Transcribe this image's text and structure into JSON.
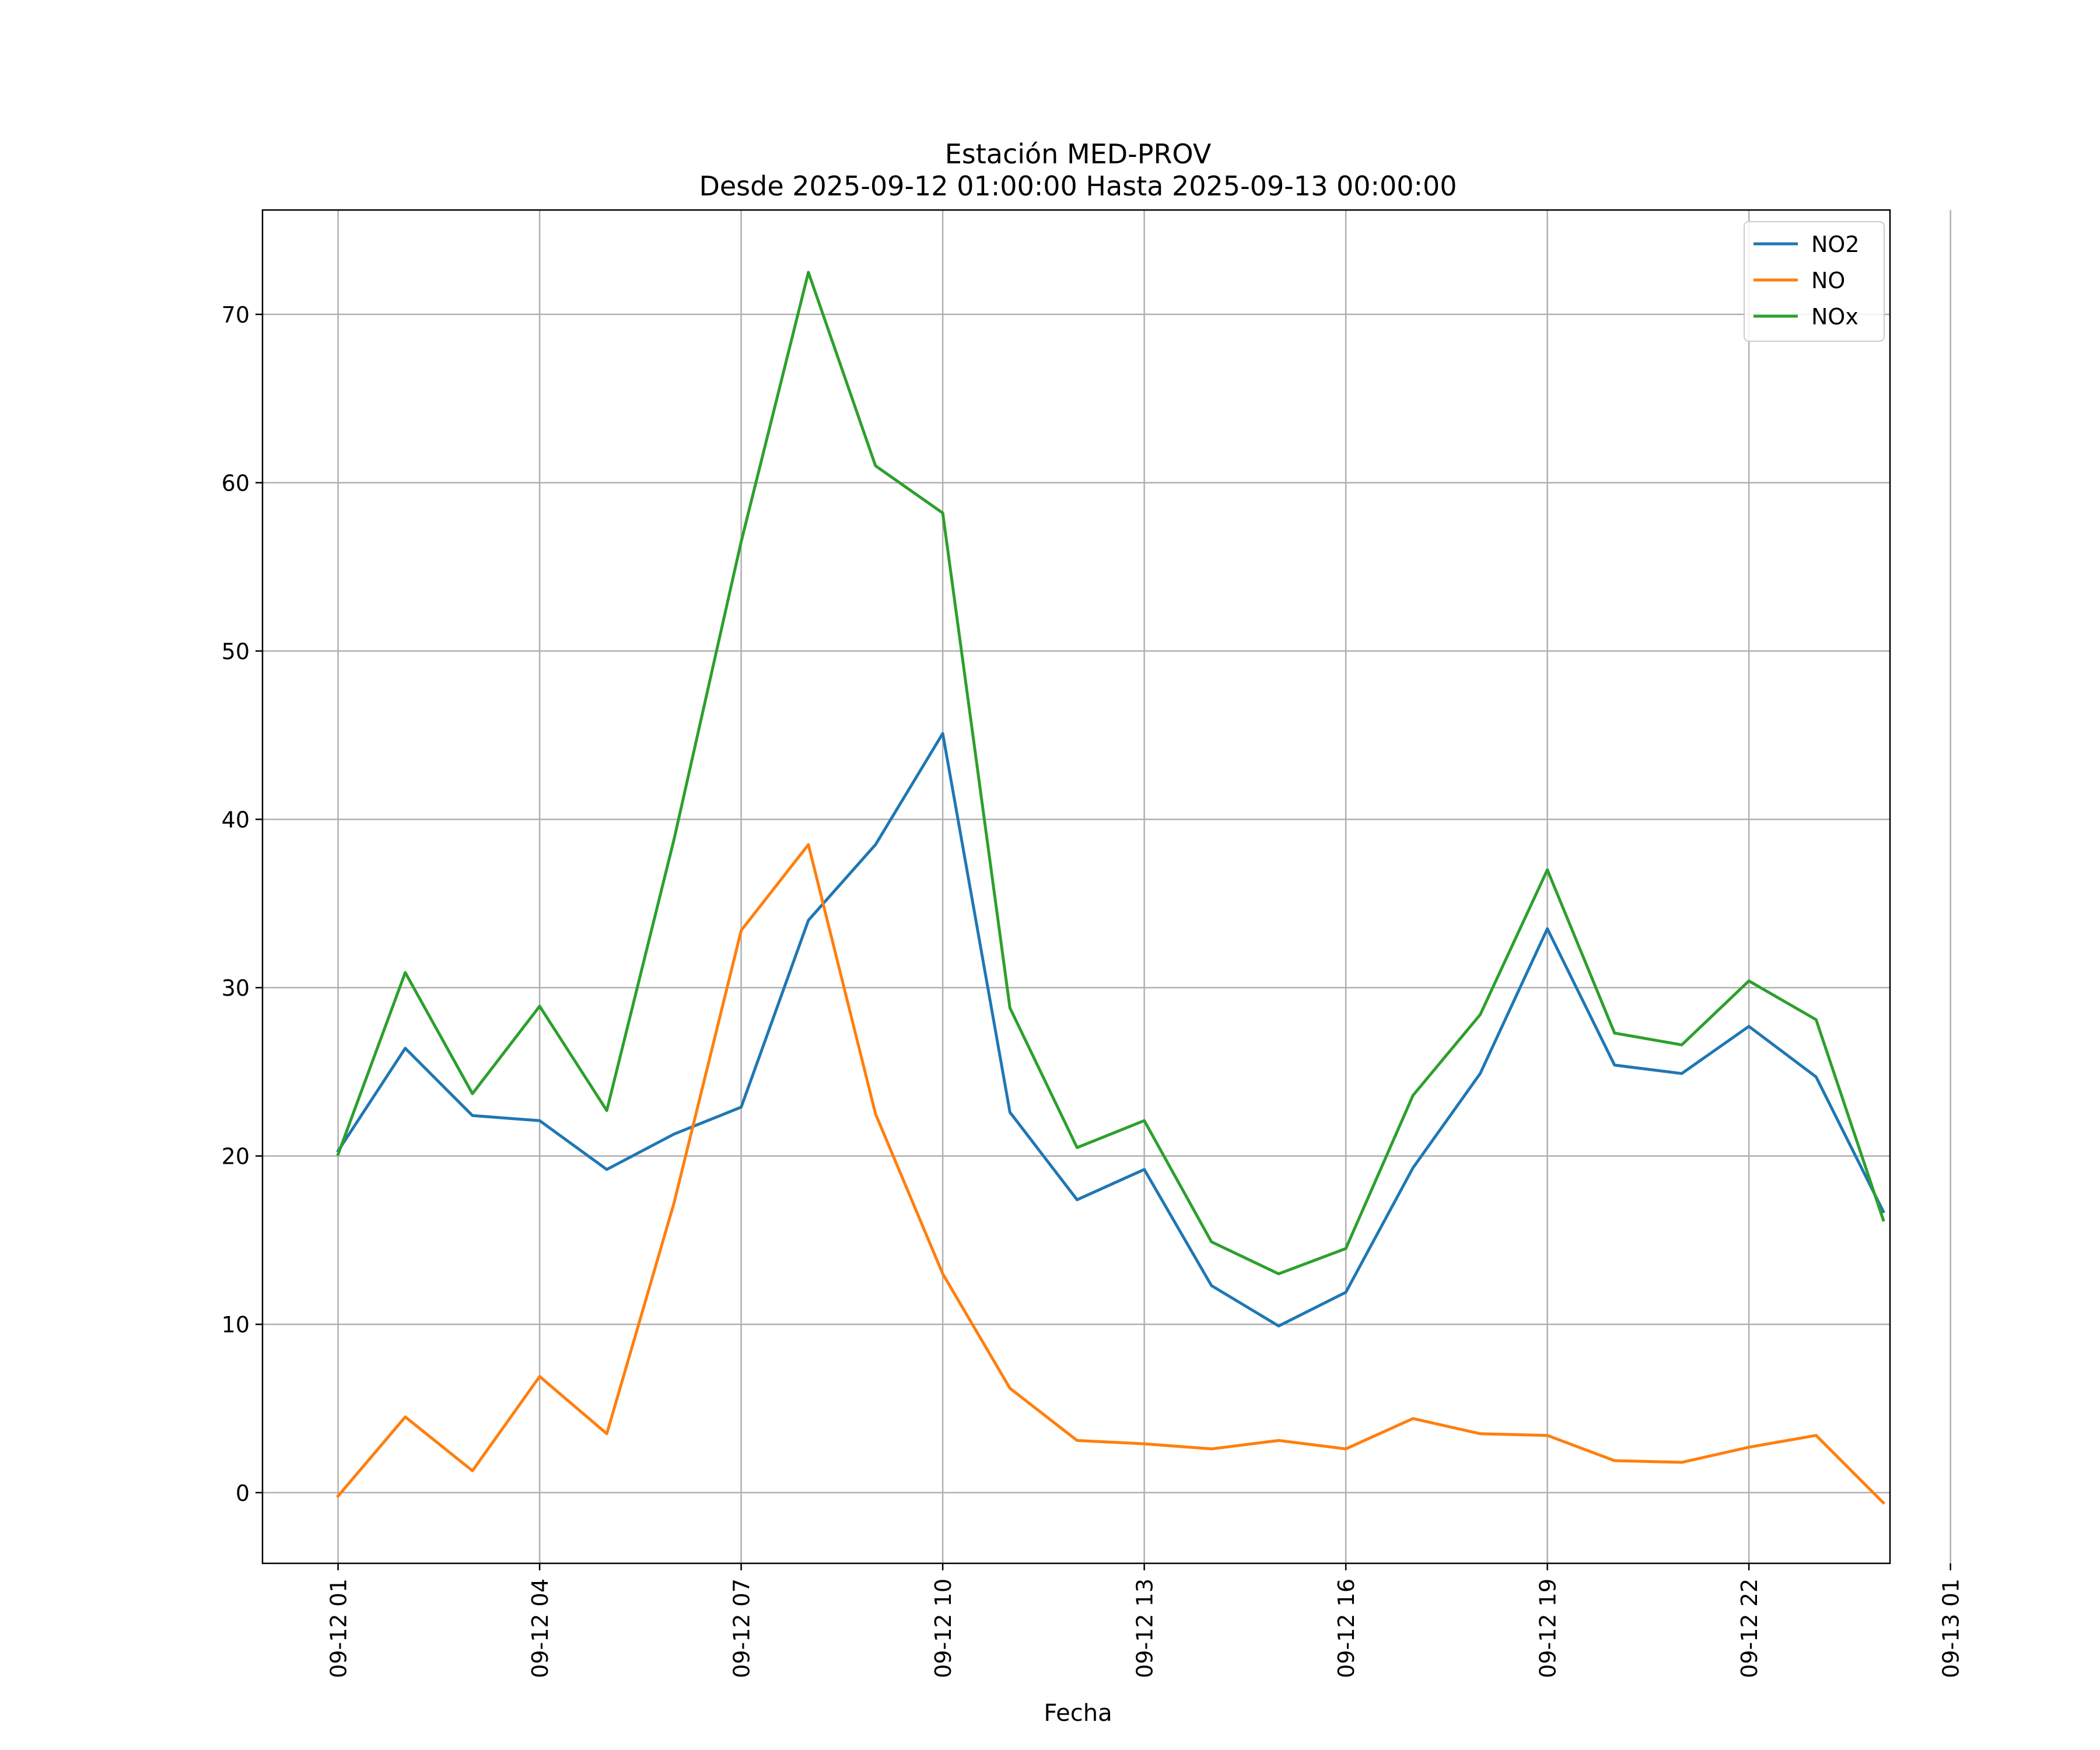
{
  "chart_data": {
    "type": "line",
    "title_line1": "Estación MED-PROV",
    "title_line2": "Desde 2025-09-12 01:00:00 Hasta 2025-09-13 00:00:00",
    "xlabel": "Fecha",
    "ylabel": "",
    "hours": [
      1,
      2,
      3,
      4,
      5,
      6,
      7,
      8,
      9,
      10,
      11,
      12,
      13,
      14,
      15,
      16,
      17,
      18,
      19,
      20,
      21,
      22,
      23,
      24
    ],
    "xlim": [
      -0.125,
      24.1
    ],
    "ylim": [
      -4.2,
      76.2
    ],
    "y_ticks": [
      0,
      10,
      20,
      30,
      40,
      50,
      60,
      70
    ],
    "y_tick_labels": [
      "0",
      "10",
      "20",
      "30",
      "40",
      "50",
      "60",
      "70"
    ],
    "x_ticks": [
      1,
      4,
      7,
      10,
      13,
      16,
      19,
      22,
      25
    ],
    "x_tick_labels": [
      "09-12 01",
      "09-12 04",
      "09-12 07",
      "09-12 10",
      "09-12 13",
      "09-12 16",
      "09-12 19",
      "09-12 22",
      "09-13 01"
    ],
    "grid": true,
    "legend_position": "top-right",
    "series": [
      {
        "name": "NO2",
        "color": "#1f77b4",
        "values": [
          20.3,
          26.4,
          22.4,
          22.1,
          19.2,
          21.3,
          22.9,
          34.0,
          38.5,
          45.1,
          22.6,
          17.4,
          19.2,
          12.3,
          9.9,
          11.9,
          19.3,
          24.9,
          33.5,
          25.4,
          24.9,
          27.7,
          24.7,
          16.7
        ]
      },
      {
        "name": "NO",
        "color": "#ff7f0e",
        "values": [
          -0.2,
          4.5,
          1.3,
          6.9,
          3.5,
          17.2,
          33.4,
          38.5,
          22.5,
          13.0,
          6.2,
          3.1,
          2.9,
          2.6,
          3.1,
          2.6,
          4.4,
          3.5,
          3.4,
          1.9,
          1.8,
          2.7,
          3.4,
          -0.6
        ]
      },
      {
        "name": "NOx",
        "color": "#2ca02c",
        "values": [
          20.1,
          30.9,
          23.7,
          28.9,
          22.7,
          38.8,
          56.5,
          72.5,
          61.0,
          58.2,
          28.8,
          20.5,
          22.1,
          14.9,
          13.0,
          14.5,
          23.6,
          28.4,
          37.0,
          27.3,
          26.6,
          30.4,
          28.1,
          16.2
        ]
      }
    ]
  }
}
